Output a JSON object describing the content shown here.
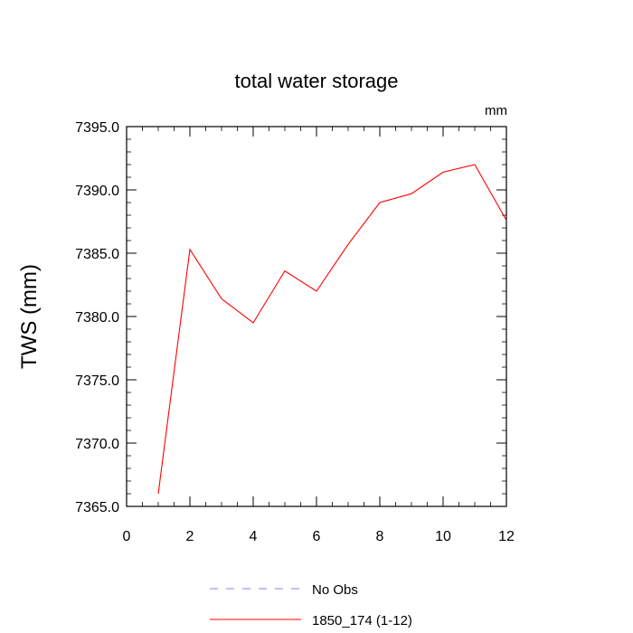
{
  "chart_data": {
    "type": "line",
    "title": "total water storage",
    "units_label": "mm",
    "ylabel": "TWS  (mm)",
    "xlabel": "",
    "xlim": [
      0,
      12
    ],
    "ylim": [
      7365.0,
      7395.0
    ],
    "x_ticks": [
      0,
      2,
      4,
      6,
      8,
      10,
      12
    ],
    "y_ticks": [
      7365.0,
      7370.0,
      7375.0,
      7380.0,
      7385.0,
      7390.0,
      7395.0
    ],
    "y_tick_labels": [
      "7365.0",
      "7370.0",
      "7375.0",
      "7380.0",
      "7385.0",
      "7390.0",
      "7395.0"
    ],
    "grid": false,
    "legend_position": "bottom",
    "series": [
      {
        "name": "1850_174 (1-12)",
        "color": "#ff0000",
        "style": "solid",
        "x": [
          1,
          2,
          3,
          4,
          5,
          6,
          7,
          8,
          9,
          10,
          11,
          12
        ],
        "y": [
          7366.0,
          7385.3,
          7381.4,
          7379.5,
          7383.6,
          7382.0,
          7385.7,
          7389.0,
          7389.7,
          7391.4,
          7392.0,
          7387.6
        ]
      }
    ],
    "legend": [
      {
        "label": "No Obs",
        "color": "#8080ff",
        "style": "dashed"
      },
      {
        "label": "1850_174 (1-12)",
        "color": "#ff0000",
        "style": "solid"
      }
    ]
  }
}
